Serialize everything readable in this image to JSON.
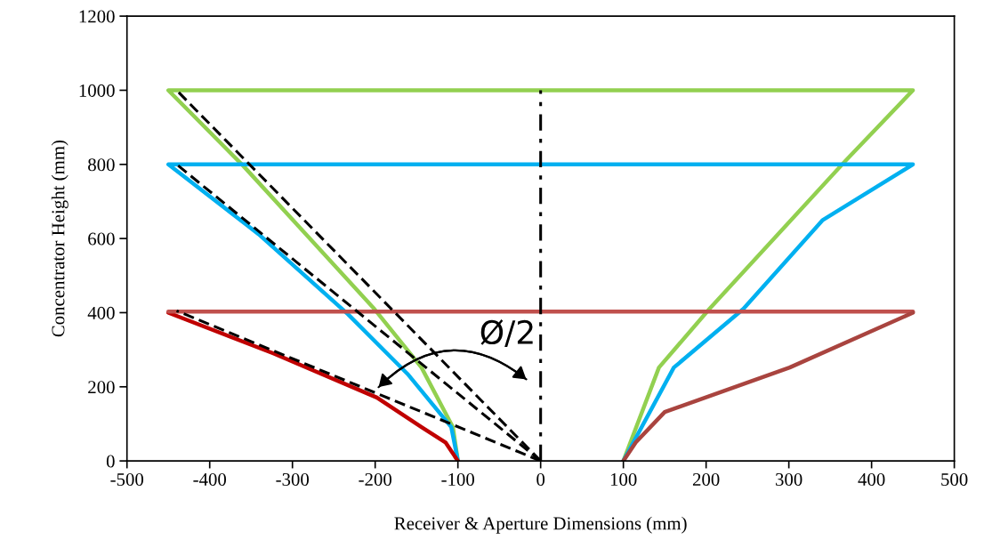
{
  "chart_data": {
    "type": "line",
    "xlabel": "Receiver & Aperture Dimensions (mm)",
    "ylabel": "Concentrator Height (mm)",
    "xlim": [
      -500,
      500
    ],
    "ylim": [
      0,
      1200
    ],
    "xticks": [
      -500,
      -400,
      -300,
      -200,
      -100,
      0,
      100,
      200,
      300,
      400,
      500
    ],
    "yticks": [
      0,
      200,
      400,
      600,
      800,
      1000,
      1200
    ],
    "grid": false,
    "marker": "none",
    "series": [
      {
        "color": "#92d050",
        "x": [
          -100,
          -106,
          -144,
          -201,
          -359,
          -450,
          450,
          369,
          204,
          143,
          100
        ],
        "values": [
          0,
          91,
          252,
          410,
          795,
          1000,
          1000,
          811,
          410,
          252,
          0
        ]
      },
      {
        "color": "#00b0f0",
        "x": [
          -100,
          -108,
          -161,
          -233,
          -341,
          -450,
          450,
          341,
          245,
          161,
          100
        ],
        "values": [
          0,
          91,
          235,
          396,
          612,
          800,
          800,
          650,
          410,
          252,
          0
        ]
      },
      {
        "color": "#c00000",
        "x": [
          -100,
          -115,
          -144,
          -198,
          -323,
          -450
        ],
        "values": [
          0,
          50,
          91,
          171,
          290,
          400
        ]
      },
      {
        "color": "#c0504d",
        "x": [
          -450,
          450
        ],
        "values": [
          403,
          403
        ]
      },
      {
        "color": "#a9443f",
        "x": [
          450,
          301,
          150,
          115,
          100
        ],
        "values": [
          400,
          252,
          132,
          50,
          0
        ]
      },
      {
        "color": "#000000",
        "line_style": "dashed",
        "x": [
          0,
          -440
        ],
        "values": [
          0,
          1000
        ]
      },
      {
        "color": "#000000",
        "line_style": "dashed",
        "x": [
          0,
          -440
        ],
        "values": [
          0,
          800
        ]
      },
      {
        "color": "#000000",
        "line_style": "dashed",
        "x": [
          0,
          -440
        ],
        "values": [
          0,
          405
        ]
      },
      {
        "color": "#000000",
        "line_style": "dashdot",
        "x": [
          0,
          0
        ],
        "values": [
          0,
          1000
        ]
      }
    ],
    "annotations": [
      "Ø/2"
    ]
  }
}
